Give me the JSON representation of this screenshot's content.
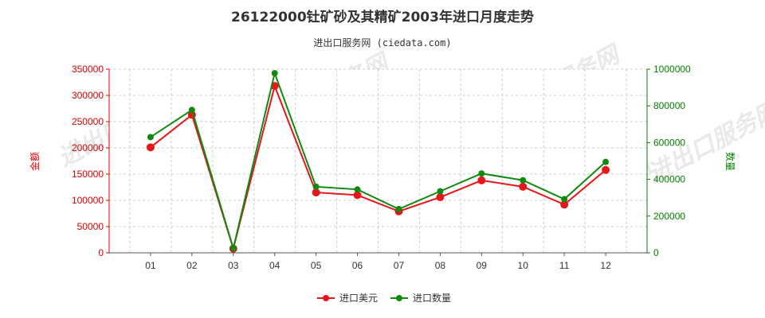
{
  "chart_data": {
    "type": "line",
    "title": "26122000钍矿砂及其精矿2003年进口月度走势",
    "subtitle": "进出口服务网 (ciedata.com)",
    "watermark": "进出口服务网",
    "categories": [
      "01",
      "02",
      "03",
      "04",
      "05",
      "06",
      "07",
      "08",
      "09",
      "10",
      "11",
      "12"
    ],
    "ylabel_left": "金额",
    "ylabel_right": "数量",
    "ylim_left": [
      0,
      350000
    ],
    "yticks_left": [
      "0",
      "50000",
      "100000",
      "150000",
      "200000",
      "250000",
      "300000",
      "350000"
    ],
    "ylim_right": [
      0,
      1000000
    ],
    "yticks_right": [
      "0",
      "200000",
      "400000",
      "600000",
      "800000",
      "1000000"
    ],
    "grid": true,
    "legend_position": "bottom",
    "series": [
      {
        "name": "进口美元",
        "axis": "left",
        "color": "#e8151b",
        "values": [
          201000,
          263000,
          8000,
          318000,
          115000,
          110000,
          79000,
          106000,
          138000,
          126000,
          92000,
          158000
        ]
      },
      {
        "name": "进口数量",
        "axis": "right",
        "color": "#0f8a0f",
        "values": [
          630000,
          778000,
          25000,
          978000,
          360000,
          345000,
          238000,
          335000,
          432000,
          395000,
          292000,
          495000
        ]
      }
    ]
  }
}
